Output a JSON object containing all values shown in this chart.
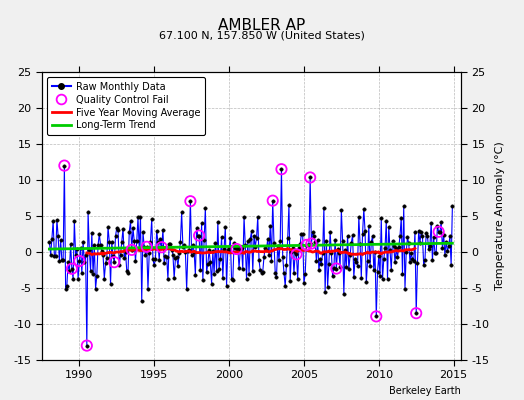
{
  "title": "AMBLER AP",
  "subtitle": "67.100 N, 157.850 W (United States)",
  "ylabel": "Temperature Anomaly (°C)",
  "watermark": "Berkeley Earth",
  "xlim": [
    1987.5,
    2015.5
  ],
  "ylim": [
    -15,
    25
  ],
  "yticks_left": [
    -15,
    -10,
    -5,
    0,
    5,
    10,
    15,
    20,
    25
  ],
  "yticks_right": [
    -15,
    -10,
    -5,
    0,
    5,
    10,
    15,
    20,
    25
  ],
  "xticks": [
    1990,
    1995,
    2000,
    2005,
    2010,
    2015
  ],
  "bg_color": "#f0f0f0",
  "plot_bg": "#ffffff",
  "raw_color": "#0000ff",
  "moving_avg_color": "#ff0000",
  "trend_color": "#00cc00",
  "qc_fail_color": "#ff00ff",
  "seed": 42,
  "start_year": 1988.0,
  "end_year": 2014.917,
  "noise_scale": 2.8,
  "qc_threshold": 4.5,
  "moving_avg_window": 60,
  "trend_intercept": 0.8,
  "trend_slope": 0.03
}
